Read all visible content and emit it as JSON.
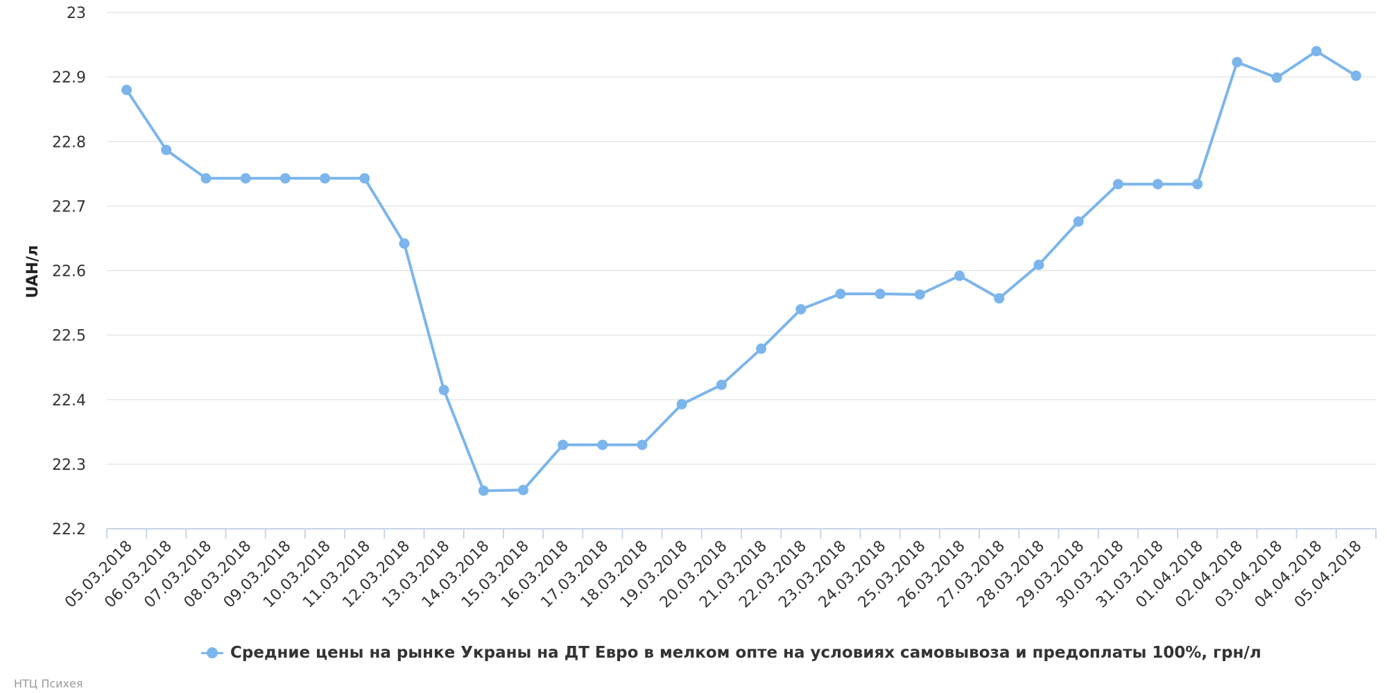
{
  "chart_data": {
    "type": "line",
    "title": "",
    "xlabel": "",
    "ylabel": "UAH/л",
    "ylim": [
      22.2,
      23
    ],
    "y_ticks": [
      "22.2",
      "22.3",
      "22.4",
      "22.5",
      "22.6",
      "22.7",
      "22.8",
      "22.9",
      "23"
    ],
    "categories": [
      "05.03.2018",
      "06.03.2018",
      "07.03.2018",
      "08.03.2018",
      "09.03.2018",
      "10.03.2018",
      "11.03.2018",
      "12.03.2018",
      "13.03.2018",
      "14.03.2018",
      "15.03.2018",
      "16.03.2018",
      "17.03.2018",
      "18.03.2018",
      "19.03.2018",
      "20.03.2018",
      "21.03.2018",
      "22.03.2018",
      "23.03.2018",
      "24.03.2018",
      "25.03.2018",
      "26.03.2018",
      "27.03.2018",
      "28.03.2018",
      "29.03.2018",
      "30.03.2018",
      "31.03.2018",
      "01.04.2018",
      "02.04.2018",
      "03.04.2018",
      "04.04.2018",
      "05.04.2018"
    ],
    "series": [
      {
        "name": "Средние цены на рынке Украны на ДТ Евро в мелком опте на условиях самовывоза и предоплаты 100%, грн/л",
        "color": "#7cb5ec",
        "values": [
          22.88,
          22.787,
          22.743,
          22.743,
          22.743,
          22.743,
          22.743,
          22.642,
          22.415,
          22.259,
          22.26,
          22.33,
          22.33,
          22.33,
          22.393,
          22.423,
          22.479,
          22.54,
          22.564,
          22.564,
          22.563,
          22.592,
          22.557,
          22.609,
          22.676,
          22.734,
          22.734,
          22.734,
          22.923,
          22.899,
          22.94,
          22.902
        ]
      }
    ],
    "grid": true,
    "legend_position": "bottom-center",
    "marker": "circle"
  },
  "credits": "НТЦ Психея"
}
